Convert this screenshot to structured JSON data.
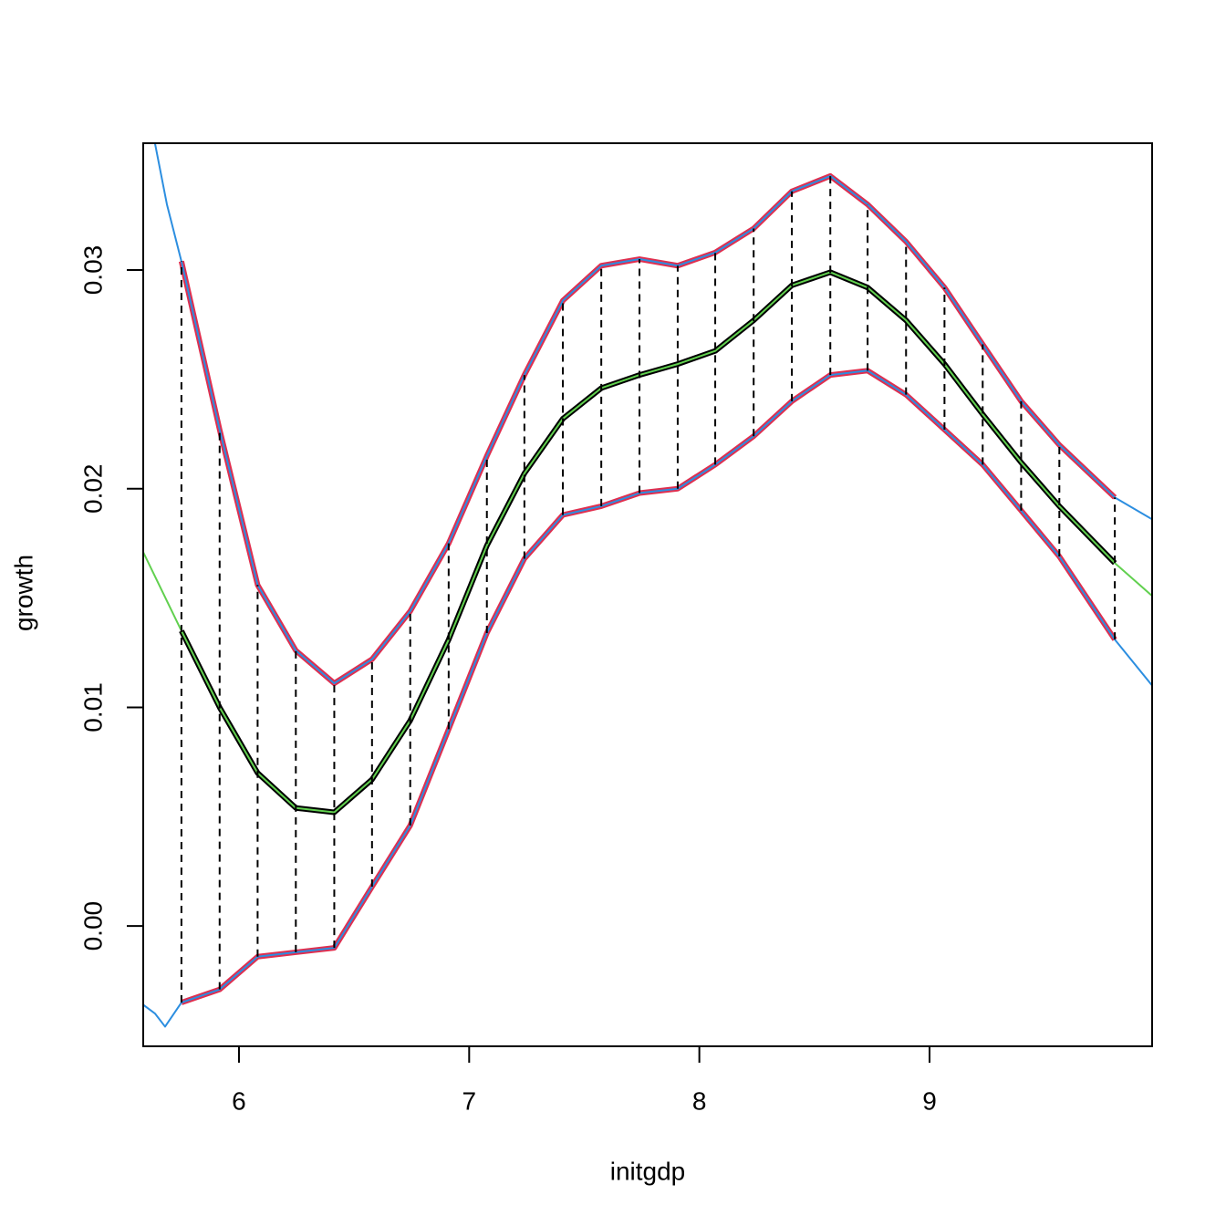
{
  "chart_data": {
    "type": "line",
    "xlabel": "initgdp",
    "ylabel": "growth",
    "xlim": [
      5.584,
      9.967
    ],
    "ylim": [
      -0.0055,
      0.0358
    ],
    "xticks": [
      6,
      7,
      8,
      9
    ],
    "yticks": [
      {
        "value": 0,
        "label": "0.00"
      },
      0.01,
      0.02,
      0.03
    ],
    "x": [
      5.75,
      5.916,
      6.081,
      6.247,
      6.414,
      6.578,
      6.744,
      6.911,
      7.077,
      7.24,
      7.407,
      7.574,
      7.74,
      7.906,
      8.069,
      8.236,
      8.402,
      8.569,
      8.731,
      8.898,
      9.065,
      9.231,
      9.398,
      9.564,
      9.805
    ],
    "series": [
      {
        "color": "#df2f4f",
        "values": [
          0.0304,
          0.0227,
          0.0156,
          0.0126,
          0.0111,
          0.0122,
          0.0144,
          0.0175,
          0.0215,
          0.0252,
          0.0286,
          0.0302,
          0.0305,
          0.0302,
          0.0308,
          0.0319,
          0.0336,
          0.0343,
          0.033,
          0.0313,
          0.0292,
          0.0266,
          0.024,
          0.022,
          0.0196
        ]
      },
      {
        "color": "#000000",
        "values": [
          0.0135,
          0.01,
          0.007,
          0.0054,
          0.0052,
          0.0067,
          0.0094,
          0.0131,
          0.0174,
          0.0207,
          0.0232,
          0.0246,
          0.0252,
          0.0257,
          0.0263,
          0.0277,
          0.0293,
          0.0299,
          0.0292,
          0.0277,
          0.0257,
          0.0234,
          0.0212,
          0.0192,
          0.0166
        ]
      },
      {
        "color": "#df2f4f",
        "values": [
          -0.0035,
          -0.0029,
          -0.0014,
          -0.0012,
          -0.001,
          0.0018,
          0.0046,
          0.009,
          0.0134,
          0.0168,
          0.0188,
          0.0192,
          0.0198,
          0.02,
          0.0211,
          0.0224,
          0.024,
          0.0252,
          0.0254,
          0.0243,
          0.0227,
          0.0211,
          0.019,
          0.0169,
          0.0131
        ]
      },
      {
        "color": "#2c8ee0",
        "x": [
          5.635,
          5.687,
          5.75,
          5.916,
          6.081,
          6.247,
          6.414,
          6.578,
          6.744,
          6.911,
          7.077,
          7.24,
          7.407,
          7.574,
          7.74,
          7.906,
          8.069,
          8.236,
          8.402,
          8.569,
          8.731,
          8.898,
          9.065,
          9.231,
          9.398,
          9.564,
          9.805,
          9.967
        ],
        "values": [
          0.0358,
          0.033,
          0.0304,
          0.0227,
          0.0156,
          0.0126,
          0.0111,
          0.0122,
          0.0144,
          0.0175,
          0.0215,
          0.0252,
          0.0286,
          0.0302,
          0.0305,
          0.0302,
          0.0308,
          0.0319,
          0.0336,
          0.0343,
          0.033,
          0.0313,
          0.0292,
          0.0266,
          0.024,
          0.022,
          0.0196,
          0.0186
        ]
      },
      {
        "color": "#2c8ee0",
        "x": [
          5.584,
          5.635,
          5.679,
          5.75,
          5.916,
          6.081,
          6.247,
          6.414,
          6.578,
          6.744,
          6.911,
          7.077,
          7.24,
          7.407,
          7.574,
          7.74,
          7.906,
          8.069,
          8.236,
          8.402,
          8.569,
          8.731,
          8.898,
          9.065,
          9.231,
          9.398,
          9.564,
          9.805,
          9.967
        ],
        "values": [
          -0.0036,
          -0.004,
          -0.0046,
          -0.0035,
          -0.0029,
          -0.0014,
          -0.0012,
          -0.001,
          0.0018,
          0.0046,
          0.009,
          0.0134,
          0.0168,
          0.0188,
          0.0192,
          0.0198,
          0.02,
          0.0211,
          0.0224,
          0.024,
          0.0252,
          0.0254,
          0.0243,
          0.0227,
          0.0211,
          0.019,
          0.0169,
          0.0131,
          0.011
        ]
      },
      {
        "color": "#61d04f",
        "x": [
          5.584,
          5.75,
          5.916,
          6.081,
          6.247,
          6.414,
          6.578,
          6.744,
          6.911,
          7.077,
          7.24,
          7.407,
          7.574,
          7.74,
          7.906,
          8.069,
          8.236,
          8.402,
          8.569,
          8.731,
          8.898,
          9.065,
          9.231,
          9.398,
          9.564,
          9.805,
          9.967
        ],
        "values": [
          0.0171,
          0.0135,
          0.01,
          0.007,
          0.0054,
          0.0052,
          0.0067,
          0.0094,
          0.0131,
          0.0174,
          0.0207,
          0.0232,
          0.0246,
          0.0252,
          0.0257,
          0.0263,
          0.0277,
          0.0293,
          0.0299,
          0.0292,
          0.0277,
          0.0257,
          0.0234,
          0.0212,
          0.0192,
          0.0166,
          0.0151
        ]
      }
    ]
  }
}
